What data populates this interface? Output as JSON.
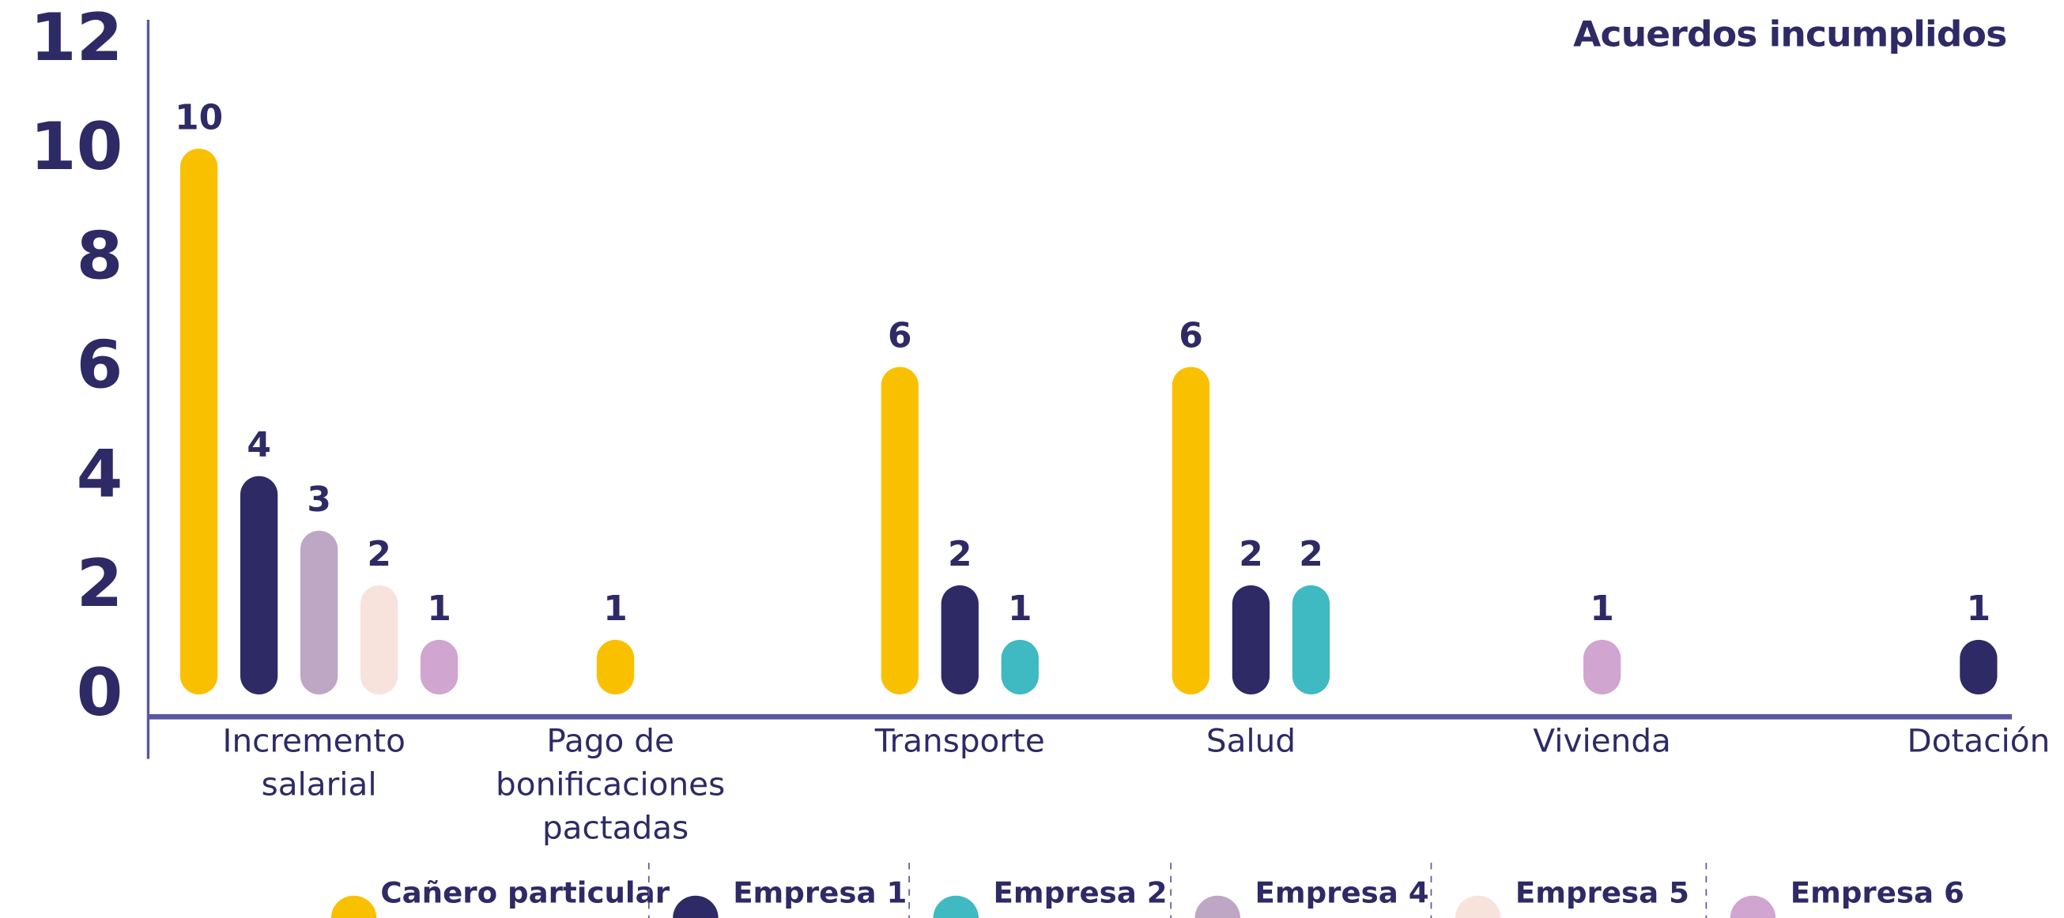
{
  "chart_data": {
    "type": "bar",
    "title": "Acuerdos incumplidos",
    "categories": [
      "Incremento salarial",
      "Pago de bonificaciones pactadas",
      "Transporte",
      "Salud",
      "Vivienda",
      "Dotación"
    ],
    "series": [
      {
        "name": "Cañero particular",
        "color": "#f9c000",
        "values": [
          10,
          1,
          6,
          6,
          null,
          null
        ]
      },
      {
        "name": "Empresa 1",
        "color": "#2e2a66",
        "values": [
          4,
          null,
          2,
          2,
          null,
          1
        ]
      },
      {
        "name": "Empresa 2",
        "color": "#3fb9c2",
        "values": [
          null,
          null,
          1,
          2,
          null,
          null
        ]
      },
      {
        "name": "Empresa 4",
        "color": "#bea6c5",
        "values": [
          3,
          null,
          null,
          null,
          null,
          null
        ]
      },
      {
        "name": "Empresa 5",
        "color": "#f8e3dc",
        "values": [
          2,
          null,
          null,
          null,
          null,
          null
        ]
      },
      {
        "name": "Empresa 6",
        "color": "#d0a5d0",
        "values": [
          1,
          null,
          null,
          null,
          1,
          null
        ]
      }
    ],
    "ylim": [
      0,
      12
    ],
    "yticks": [
      0,
      2,
      4,
      6,
      8,
      10,
      12
    ],
    "legend": "bottom"
  }
}
